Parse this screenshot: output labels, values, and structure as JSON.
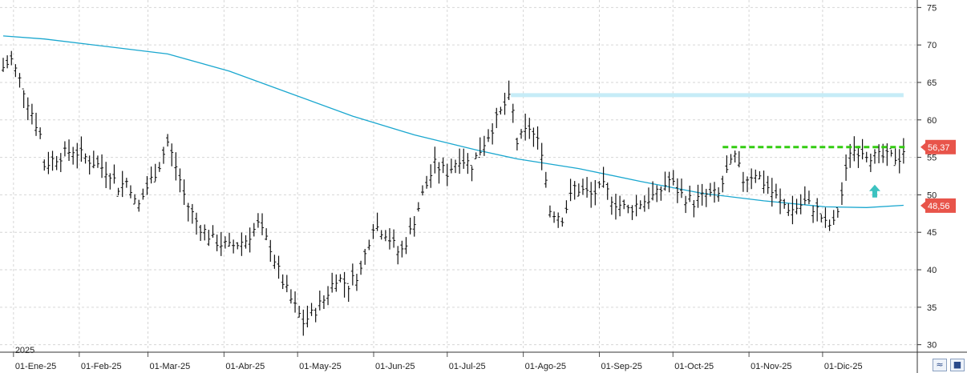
{
  "chart_data": {
    "type": "ohlc",
    "y_axis": {
      "min": 29,
      "max": 76,
      "ticks": [
        75,
        70,
        65,
        60,
        55,
        50,
        45,
        40,
        35,
        30
      ],
      "position": "right"
    },
    "x_axis": {
      "labels": [
        "01-Ene-25",
        "01-Feb-25",
        "01-Mar-25",
        "01-Abr-25",
        "01-May-25",
        "01-Jun-25",
        "01-Jul-25",
        "01-Ago-25",
        "01-Sep-25",
        "01-Oct-25",
        "01-Nov-25",
        "01-Dic-25"
      ],
      "year_label": "2025"
    },
    "grid": true,
    "price_points": [
      [
        0,
        67
      ],
      [
        4,
        68
      ],
      [
        10,
        64
      ],
      [
        18,
        58
      ],
      [
        20,
        54
      ],
      [
        26,
        55
      ],
      [
        34,
        56
      ],
      [
        40,
        55
      ],
      [
        46,
        54
      ],
      [
        52,
        53
      ],
      [
        56,
        51
      ],
      [
        61,
        52
      ],
      [
        65,
        48
      ],
      [
        70,
        51
      ],
      [
        76,
        54
      ],
      [
        80,
        57
      ],
      [
        85,
        53
      ],
      [
        89,
        49
      ],
      [
        95,
        46
      ],
      [
        102,
        44
      ],
      [
        110,
        43
      ],
      [
        118,
        44
      ],
      [
        124,
        46
      ],
      [
        130,
        43
      ],
      [
        135,
        39
      ],
      [
        140,
        36
      ],
      [
        146,
        33
      ],
      [
        150,
        34
      ],
      [
        156,
        36
      ],
      [
        162,
        39
      ],
      [
        168,
        38
      ],
      [
        174,
        40
      ],
      [
        180,
        46
      ],
      [
        186,
        45
      ],
      [
        193,
        42
      ],
      [
        198,
        45
      ],
      [
        204,
        50
      ],
      [
        210,
        54
      ],
      [
        216,
        53
      ],
      [
        222,
        55
      ],
      [
        228,
        54
      ],
      [
        234,
        57
      ],
      [
        240,
        60
      ],
      [
        244,
        62
      ],
      [
        247,
        63
      ],
      [
        250,
        57
      ],
      [
        256,
        59
      ],
      [
        262,
        56
      ],
      [
        266,
        48
      ],
      [
        272,
        47
      ],
      [
        278,
        51
      ],
      [
        286,
        50
      ],
      [
        292,
        51
      ],
      [
        298,
        49
      ],
      [
        304,
        48
      ],
      [
        310,
        49
      ],
      [
        318,
        50
      ],
      [
        324,
        52
      ],
      [
        330,
        50
      ],
      [
        336,
        49
      ],
      [
        342,
        50
      ],
      [
        348,
        50
      ],
      [
        352,
        53
      ],
      [
        356,
        55
      ],
      [
        360,
        52
      ],
      [
        366,
        53
      ],
      [
        372,
        51
      ],
      [
        378,
        49
      ],
      [
        384,
        48
      ],
      [
        390,
        49
      ],
      [
        396,
        48
      ],
      [
        400,
        46
      ],
      [
        404,
        46
      ],
      [
        408,
        50
      ],
      [
        412,
        56
      ],
      [
        418,
        56
      ],
      [
        424,
        55
      ],
      [
        430,
        55
      ],
      [
        436,
        55
      ],
      [
        438,
        56
      ]
    ],
    "moving_average": {
      "color": "#1aa7cf",
      "points": [
        [
          0,
          71.2
        ],
        [
          20,
          70.8
        ],
        [
          50,
          69.8
        ],
        [
          80,
          68.8
        ],
        [
          110,
          66.5
        ],
        [
          140,
          63.5
        ],
        [
          170,
          60.5
        ],
        [
          200,
          58
        ],
        [
          230,
          56
        ],
        [
          250,
          54.8
        ],
        [
          280,
          53.5
        ],
        [
          310,
          51.8
        ],
        [
          340,
          50.2
        ],
        [
          370,
          49.2
        ],
        [
          400,
          48.4
        ],
        [
          420,
          48.3
        ],
        [
          438,
          48.6
        ]
      ]
    },
    "resistance_line": {
      "value": 63.3,
      "x_start": 247,
      "x_end": 438,
      "color": "#c6ecf7"
    },
    "dashed_level": {
      "value": 56.37,
      "x_start": 350,
      "x_end": 438,
      "color": "#33cc11"
    },
    "arrow_up": {
      "x": 424,
      "value": 50.5,
      "color": "#3cc2c0"
    },
    "tags": [
      {
        "label": "56,37",
        "value": 56.37,
        "color": "#e8544a"
      },
      {
        "label": "48,56",
        "value": 48.56,
        "color": "#e8544a"
      }
    ]
  },
  "controls": {
    "zoom_glyph": "≈",
    "save_glyph": "■"
  }
}
